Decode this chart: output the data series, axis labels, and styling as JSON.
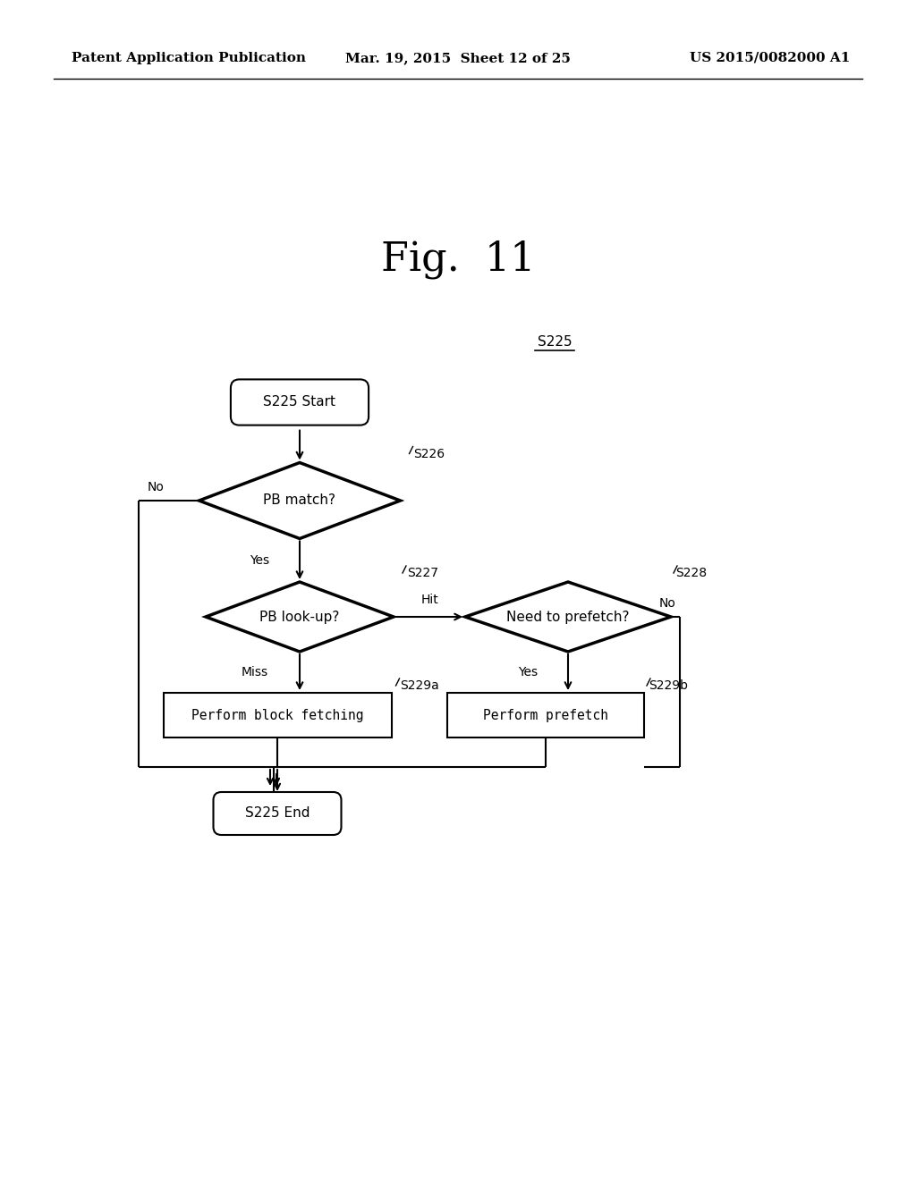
{
  "title": "Fig.  11",
  "header_left": "Patent Application Publication",
  "header_mid": "Mar. 19, 2015  Sheet 12 of 25",
  "header_right": "US 2015/0082000 A1",
  "s225_label": "S225",
  "start_text": "S225 Start",
  "end_text": "S225 End",
  "pb_match_text": "PB match?",
  "pb_lookup_text": "PB look-up?",
  "need_prefetch_text": "Need to prefetch?",
  "block_fetch_text": "Perform block fetching",
  "prefetch_text": "Perform prefetch",
  "s226_label": "S226",
  "s227_label": "S227",
  "s228_label": "S228",
  "s229a_label": "S229a",
  "s229b_label": "S229b",
  "bg_color": "#ffffff",
  "line_color": "#000000",
  "text_color": "#000000",
  "font_size_title": 32,
  "font_size_header": 11,
  "font_size_node": 11,
  "font_size_label": 10,
  "lw_thick": 2.5,
  "lw_thin": 1.5
}
